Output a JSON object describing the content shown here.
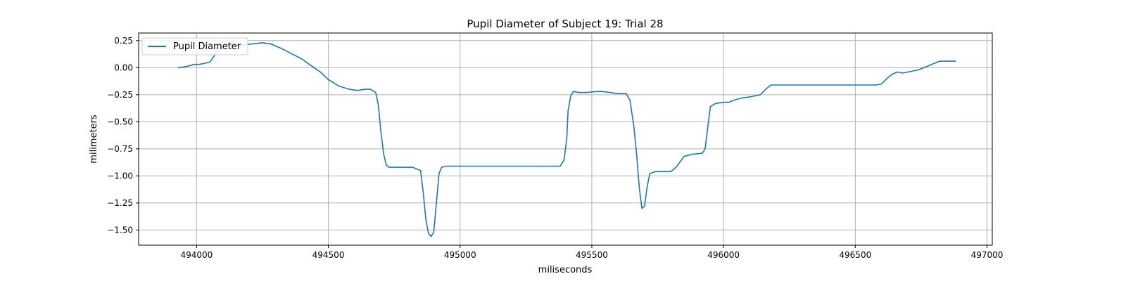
{
  "chart_data": {
    "type": "line",
    "title": "Pupil Diameter of Subject 19: Trial 28",
    "xlabel": "miliseconds",
    "ylabel": "milimeters",
    "xlim": [
      493780,
      497020
    ],
    "ylim": [
      -1.64,
      0.32
    ],
    "xticks": [
      494000,
      494500,
      495000,
      495500,
      496000,
      496500,
      497000
    ],
    "yticks": [
      0.25,
      0.0,
      -0.25,
      -0.5,
      -0.75,
      -1.0,
      -1.25,
      -1.5
    ],
    "xtick_labels": [
      "494000",
      "494500",
      "495000",
      "495500",
      "496000",
      "496500",
      "497000"
    ],
    "ytick_labels": [
      "0.25",
      "0.00",
      "−0.25",
      "−0.50",
      "−0.75",
      "−1.00",
      "−1.25",
      "−1.50"
    ],
    "grid": true,
    "legend_position": "top-left",
    "series": [
      {
        "name": "Pupil Diameter",
        "color": "#1f77b4",
        "x": [
          493930,
          493960,
          493990,
          494010,
          494030,
          494050,
          494070,
          494090,
          494120,
          494150,
          494180,
          494210,
          494250,
          494280,
          494320,
          494360,
          494400,
          494440,
          494470,
          494500,
          494540,
          494580,
          494610,
          494640,
          494660,
          494680,
          494690,
          494700,
          494710,
          494720,
          494730,
          494750,
          494780,
          494820,
          494850,
          494860,
          494870,
          494880,
          494890,
          494900,
          494910,
          494920,
          494930,
          494950,
          495000,
          495100,
          495200,
          495300,
          495380,
          495395,
          495405,
          495410,
          495420,
          495430,
          495450,
          495480,
          495520,
          495540,
          495570,
          495600,
          495630,
          495645,
          495660,
          495670,
          495680,
          495690,
          495700,
          495710,
          495720,
          495740,
          495780,
          495800,
          495820,
          495850,
          495880,
          495920,
          495930,
          495940,
          495950,
          495970,
          496000,
          496020,
          496040,
          496070,
          496100,
          496120,
          496140,
          496160,
          496180,
          496200,
          496300,
          496400,
          496500,
          496580,
          496600,
          496620,
          496640,
          496660,
          496680,
          496700,
          496720,
          496740,
          496760,
          496780,
          496800,
          496820,
          496840,
          496860,
          496880
        ],
        "values": [
          0.0,
          0.01,
          0.03,
          0.03,
          0.04,
          0.05,
          0.12,
          0.18,
          0.21,
          0.21,
          0.21,
          0.22,
          0.23,
          0.22,
          0.18,
          0.13,
          0.08,
          0.01,
          -0.04,
          -0.11,
          -0.17,
          -0.2,
          -0.21,
          -0.2,
          -0.2,
          -0.23,
          -0.35,
          -0.6,
          -0.8,
          -0.9,
          -0.92,
          -0.92,
          -0.92,
          -0.92,
          -0.95,
          -1.15,
          -1.4,
          -1.53,
          -1.56,
          -1.52,
          -1.25,
          -0.98,
          -0.92,
          -0.91,
          -0.91,
          -0.91,
          -0.91,
          -0.91,
          -0.91,
          -0.85,
          -0.65,
          -0.4,
          -0.26,
          -0.22,
          -0.23,
          -0.23,
          -0.22,
          -0.22,
          -0.23,
          -0.24,
          -0.24,
          -0.3,
          -0.55,
          -0.8,
          -1.1,
          -1.3,
          -1.28,
          -1.1,
          -0.98,
          -0.96,
          -0.96,
          -0.96,
          -0.92,
          -0.82,
          -0.8,
          -0.79,
          -0.75,
          -0.55,
          -0.36,
          -0.33,
          -0.32,
          -0.32,
          -0.3,
          -0.28,
          -0.27,
          -0.26,
          -0.25,
          -0.2,
          -0.16,
          -0.16,
          -0.16,
          -0.16,
          -0.16,
          -0.16,
          -0.15,
          -0.1,
          -0.06,
          -0.04,
          -0.05,
          -0.04,
          -0.03,
          -0.02,
          0.0,
          0.02,
          0.04,
          0.06,
          0.06,
          0.06,
          0.06
        ]
      }
    ]
  }
}
